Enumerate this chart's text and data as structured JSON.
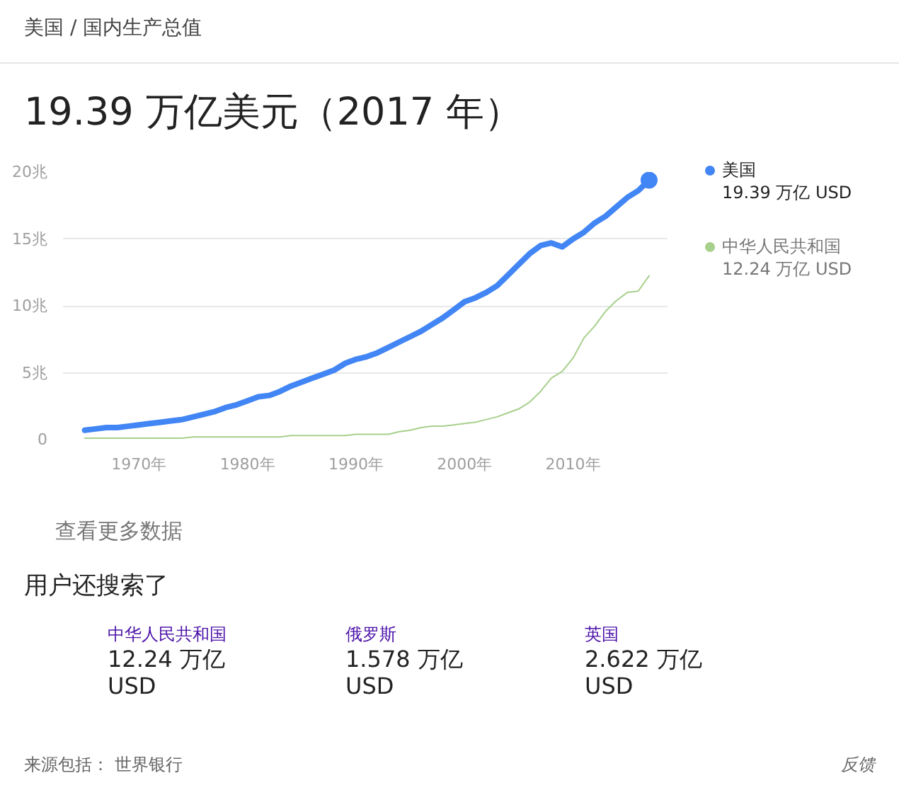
{
  "chart_data": {
    "type": "line",
    "subtitle": "美国 / 国内生产总值",
    "title": "19.39 万亿美元（2017 年）",
    "xlim": [
      1963,
      2018.7
    ],
    "ylim": [
      0,
      20
    ],
    "xticks": [
      {
        "value": 1970,
        "label": "1970年"
      },
      {
        "value": 1980,
        "label": "1980年"
      },
      {
        "value": 1990,
        "label": "1990年"
      },
      {
        "value": 2000,
        "label": "2000年"
      },
      {
        "value": 2010,
        "label": "2010年"
      }
    ],
    "yticks": [
      0,
      {
        "value": 5,
        "label": "5兆"
      },
      {
        "value": 10,
        "label": "10兆"
      },
      {
        "value": 15,
        "label": "15兆"
      },
      {
        "value": 20,
        "label": "20兆"
      }
    ],
    "x": [
      1965,
      1966,
      1967,
      1968,
      1969,
      1970,
      1971,
      1972,
      1973,
      1974,
      1975,
      1976,
      1977,
      1978,
      1979,
      1980,
      1981,
      1982,
      1983,
      1984,
      1985,
      1986,
      1987,
      1988,
      1989,
      1990,
      1991,
      1992,
      1993,
      1994,
      1995,
      1996,
      1997,
      1998,
      1999,
      2000,
      2001,
      2002,
      2003,
      2004,
      2005,
      2006,
      2007,
      2008,
      2009,
      2010,
      2011,
      2012,
      2013,
      2014,
      2015,
      2016,
      2017
    ],
    "series": [
      {
        "name": "美国",
        "color": "#4285f4",
        "values": [
          0.7,
          0.8,
          0.9,
          0.9,
          1.0,
          1.1,
          1.2,
          1.3,
          1.4,
          1.5,
          1.7,
          1.9,
          2.1,
          2.4,
          2.6,
          2.9,
          3.2,
          3.3,
          3.6,
          4.0,
          4.3,
          4.6,
          4.9,
          5.2,
          5.7,
          6.0,
          6.2,
          6.5,
          6.9,
          7.3,
          7.7,
          8.1,
          8.6,
          9.1,
          9.7,
          10.3,
          10.6,
          11.0,
          11.5,
          12.3,
          13.1,
          13.9,
          14.5,
          14.7,
          14.4,
          15.0,
          15.5,
          16.2,
          16.7,
          17.4,
          18.1,
          18.6,
          19.39
        ]
      },
      {
        "name": "中华人民共和国",
        "color": "#a8d08d",
        "values": [
          0.1,
          0.1,
          0.1,
          0.1,
          0.1,
          0.1,
          0.1,
          0.1,
          0.1,
          0.1,
          0.2,
          0.2,
          0.2,
          0.2,
          0.2,
          0.2,
          0.2,
          0.2,
          0.2,
          0.3,
          0.3,
          0.3,
          0.3,
          0.3,
          0.3,
          0.4,
          0.4,
          0.4,
          0.4,
          0.6,
          0.7,
          0.9,
          1.0,
          1.0,
          1.1,
          1.2,
          1.3,
          1.5,
          1.7,
          2.0,
          2.3,
          2.8,
          3.6,
          4.6,
          5.1,
          6.1,
          7.6,
          8.5,
          9.6,
          10.4,
          11.0,
          11.1,
          12.24
        ]
      },
      {
        "type": "scatter",
        "marker": "circle",
        "color": "#4285f4",
        "x": [
          2017
        ],
        "values": [
          19.39
        ]
      }
    ],
    "grid": "y",
    "legend": "right",
    "marker": "none",
    "line_style": "solid",
    "annotations": [
      "19.39 万亿 USD",
      "12.24 万亿 USD",
      "查看更多数据",
      "用户还搜索了",
      "中华人民共和国",
      "12.24 万亿 USD",
      "俄罗斯",
      "1.578 万亿 USD",
      "英国",
      "2.622 万亿 USD",
      "来源包括： 世界银行",
      "反馈"
    ]
  }
}
